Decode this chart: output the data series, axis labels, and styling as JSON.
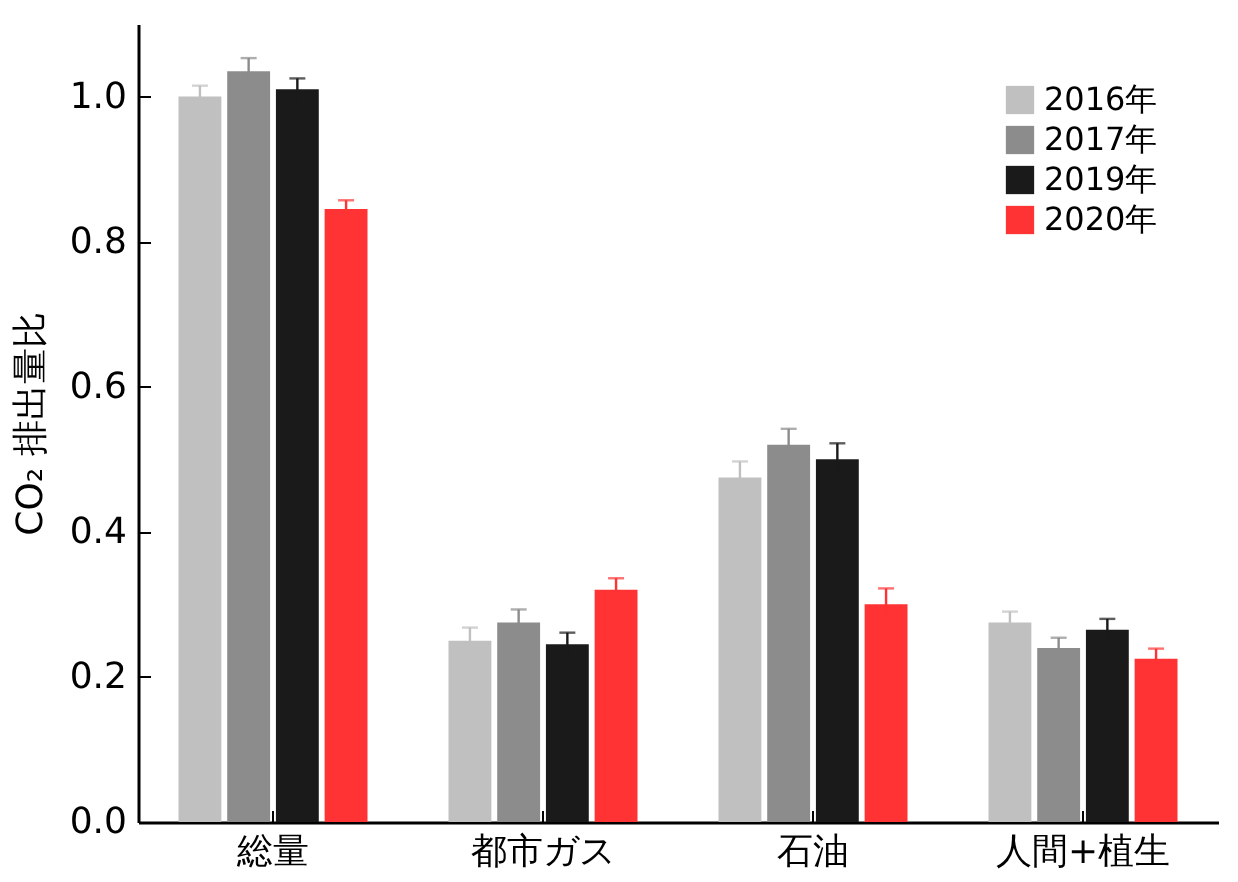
{
  "chart_data": {
    "type": "bar",
    "ylabel": "CO₂ 排出量比",
    "categories": [
      "総量",
      "都市ガス",
      "石油",
      "人間+植生"
    ],
    "series": [
      {
        "name": "2016年",
        "color": "#c0c0c0",
        "values": [
          1.0,
          0.25,
          0.475,
          0.275
        ],
        "errors": [
          0.015,
          0.018,
          0.022,
          0.015
        ]
      },
      {
        "name": "2017年",
        "color": "#8c8c8c",
        "values": [
          1.035,
          0.275,
          0.52,
          0.24
        ],
        "errors": [
          0.018,
          0.018,
          0.022,
          0.014
        ]
      },
      {
        "name": "2019年",
        "color": "#1a1a1a",
        "values": [
          1.01,
          0.245,
          0.5,
          0.265
        ],
        "errors": [
          0.015,
          0.016,
          0.022,
          0.015
        ]
      },
      {
        "name": "2020年",
        "color": "#ff3333",
        "values": [
          0.845,
          0.32,
          0.3,
          0.225
        ],
        "errors": [
          0.012,
          0.016,
          0.022,
          0.014
        ]
      }
    ],
    "ylim": [
      0,
      1.1
    ],
    "yticks": [
      {
        "value": 0,
        "label": "0.0"
      },
      {
        "value": 0.2,
        "label": "0.2"
      },
      {
        "value": 0.4,
        "label": "0.4"
      },
      {
        "value": 0.6,
        "label": "0.6"
      },
      {
        "value": 0.8,
        "label": "0.8"
      },
      {
        "value": 1,
        "label": "1.0"
      }
    ],
    "grid": false,
    "legend": "top right"
  }
}
